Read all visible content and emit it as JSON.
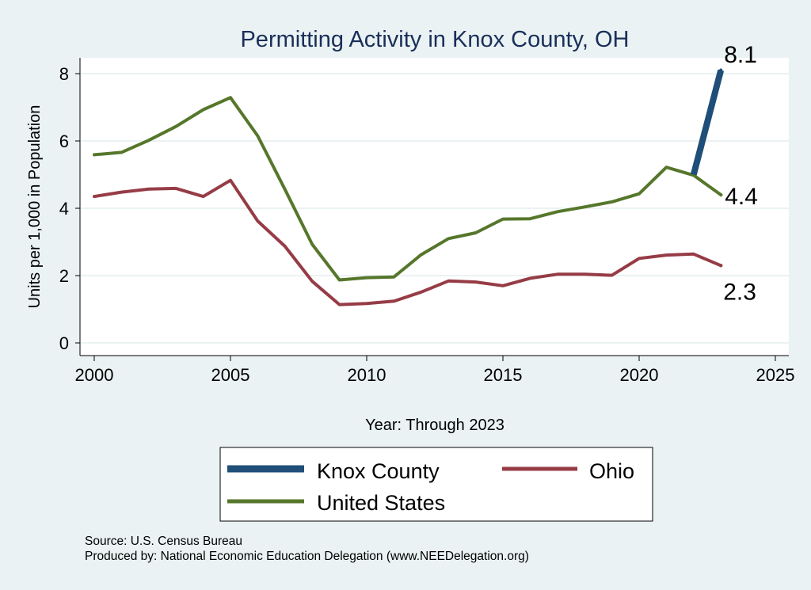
{
  "chart_data": {
    "type": "line",
    "title": "Permitting Activity in Knox County, OH",
    "xlabel": "Year: Through 2023",
    "ylabel": "Units per 1,000 in Population",
    "xlim": [
      2000,
      2025
    ],
    "ylim": [
      0,
      8
    ],
    "x_ticks": [
      2000,
      2005,
      2010,
      2015,
      2020,
      2025
    ],
    "y_ticks": [
      0,
      2,
      4,
      6,
      8
    ],
    "grid": true,
    "legend_position": "bottom",
    "series": [
      {
        "name": "Knox County",
        "color": "#1f4e79",
        "x": [
          2022,
          2023
        ],
        "values": [
          5.0,
          8.1
        ],
        "end_label": "8.1"
      },
      {
        "name": "Ohio",
        "color": "#963c46",
        "x": [
          2000,
          2001,
          2002,
          2003,
          2004,
          2005,
          2006,
          2007,
          2008,
          2009,
          2010,
          2011,
          2012,
          2013,
          2014,
          2015,
          2016,
          2017,
          2018,
          2019,
          2020,
          2021,
          2022,
          2023
        ],
        "values": [
          4.35,
          4.48,
          4.57,
          4.59,
          4.35,
          4.83,
          3.62,
          2.87,
          1.83,
          1.14,
          1.17,
          1.24,
          1.51,
          1.84,
          1.81,
          1.7,
          1.92,
          2.04,
          2.04,
          2.01,
          2.51,
          2.61,
          2.64,
          2.3
        ],
        "end_label": "2.3"
      },
      {
        "name": "United States",
        "color": "#56772b",
        "x": [
          2000,
          2001,
          2002,
          2003,
          2004,
          2005,
          2006,
          2007,
          2008,
          2009,
          2010,
          2011,
          2012,
          2013,
          2014,
          2015,
          2016,
          2017,
          2018,
          2019,
          2020,
          2021,
          2022,
          2023
        ],
        "values": [
          5.59,
          5.66,
          6.02,
          6.43,
          6.93,
          7.29,
          6.15,
          4.56,
          2.93,
          1.87,
          1.94,
          1.96,
          2.62,
          3.1,
          3.27,
          3.68,
          3.69,
          3.9,
          4.04,
          4.19,
          4.43,
          5.22,
          4.98,
          4.4
        ],
        "end_label": "4.4"
      }
    ],
    "legend": [
      "Knox County",
      "Ohio",
      "United States"
    ],
    "notes": [
      "Source: U.S. Census Bureau",
      "Produced by: National Economic Education Delegation (www.NEEDelegation.org)"
    ]
  }
}
